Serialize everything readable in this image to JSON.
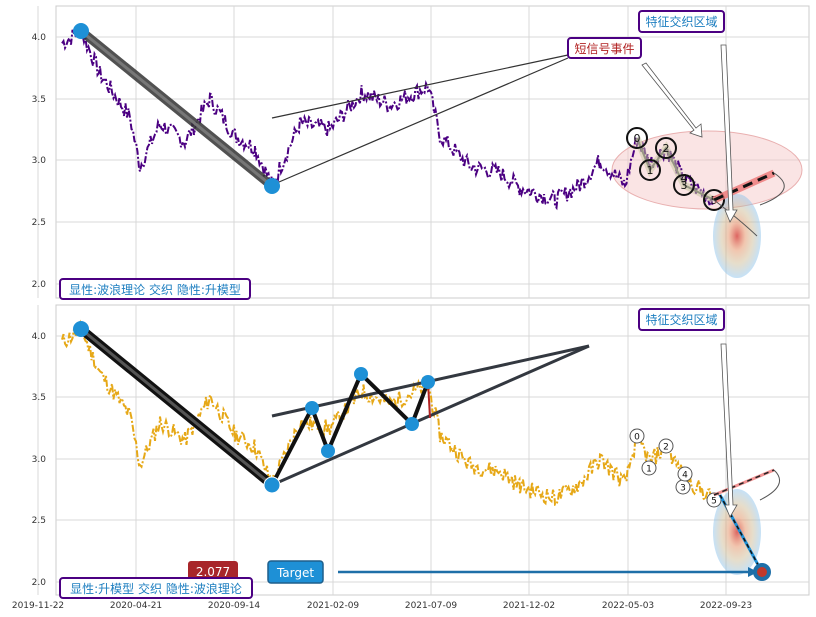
{
  "chart_data": [
    {
      "type": "line",
      "panel": "top",
      "y_ticks": [
        "2.0",
        "2.5",
        "3.0",
        "3.5",
        "4.0"
      ],
      "ylim": [
        1.93,
        4.23
      ],
      "grid": true,
      "series_color": "#4b0082",
      "legend_text": "显性:波浪理论 交织 隐性:升模型",
      "annotations": {
        "event": "短信号事件",
        "region": "特征交织区域"
      },
      "wave_labels": [
        "0",
        "1",
        "2",
        "3",
        "4",
        "5"
      ],
      "pivots": [
        {
          "date": "2020-01-20",
          "value": 4.05
        },
        {
          "date": "2020-10-30",
          "value": 2.78
        }
      ]
    },
    {
      "type": "line",
      "panel": "bottom",
      "y_ticks": [
        "2.0",
        "2.5",
        "3.0",
        "3.5",
        "4.0"
      ],
      "ylim": [
        1.95,
        4.2
      ],
      "grid": true,
      "series_color": "#e6a817",
      "legend_text": "显性:升模型 交织 隐性:波浪理论",
      "annotations": {
        "region": "特征交织区域",
        "target_label": "Target",
        "price_tag": "2.077"
      },
      "wave_labels": [
        "0",
        "1",
        "2",
        "3",
        "4",
        "5"
      ],
      "pivots": [
        {
          "date": "2020-01-20",
          "value": 4.05
        },
        {
          "date": "2020-10-30",
          "value": 2.78
        },
        {
          "date": "2020-12-15",
          "value": 3.4
        },
        {
          "date": "2021-01-05",
          "value": 3.06
        },
        {
          "date": "2021-03-01",
          "value": 3.68
        },
        {
          "date": "2021-06-20",
          "value": 3.28
        },
        {
          "date": "2021-07-20",
          "value": 3.62
        }
      ],
      "target": {
        "date": "2022-11-10",
        "value": 2.08
      }
    }
  ],
  "x_ticks": [
    "2019-11-22",
    "2020-04-21",
    "2020-09-14",
    "2021-02-09",
    "2021-07-09",
    "2021-12-02",
    "2022-05-03",
    "2022-09-23"
  ]
}
